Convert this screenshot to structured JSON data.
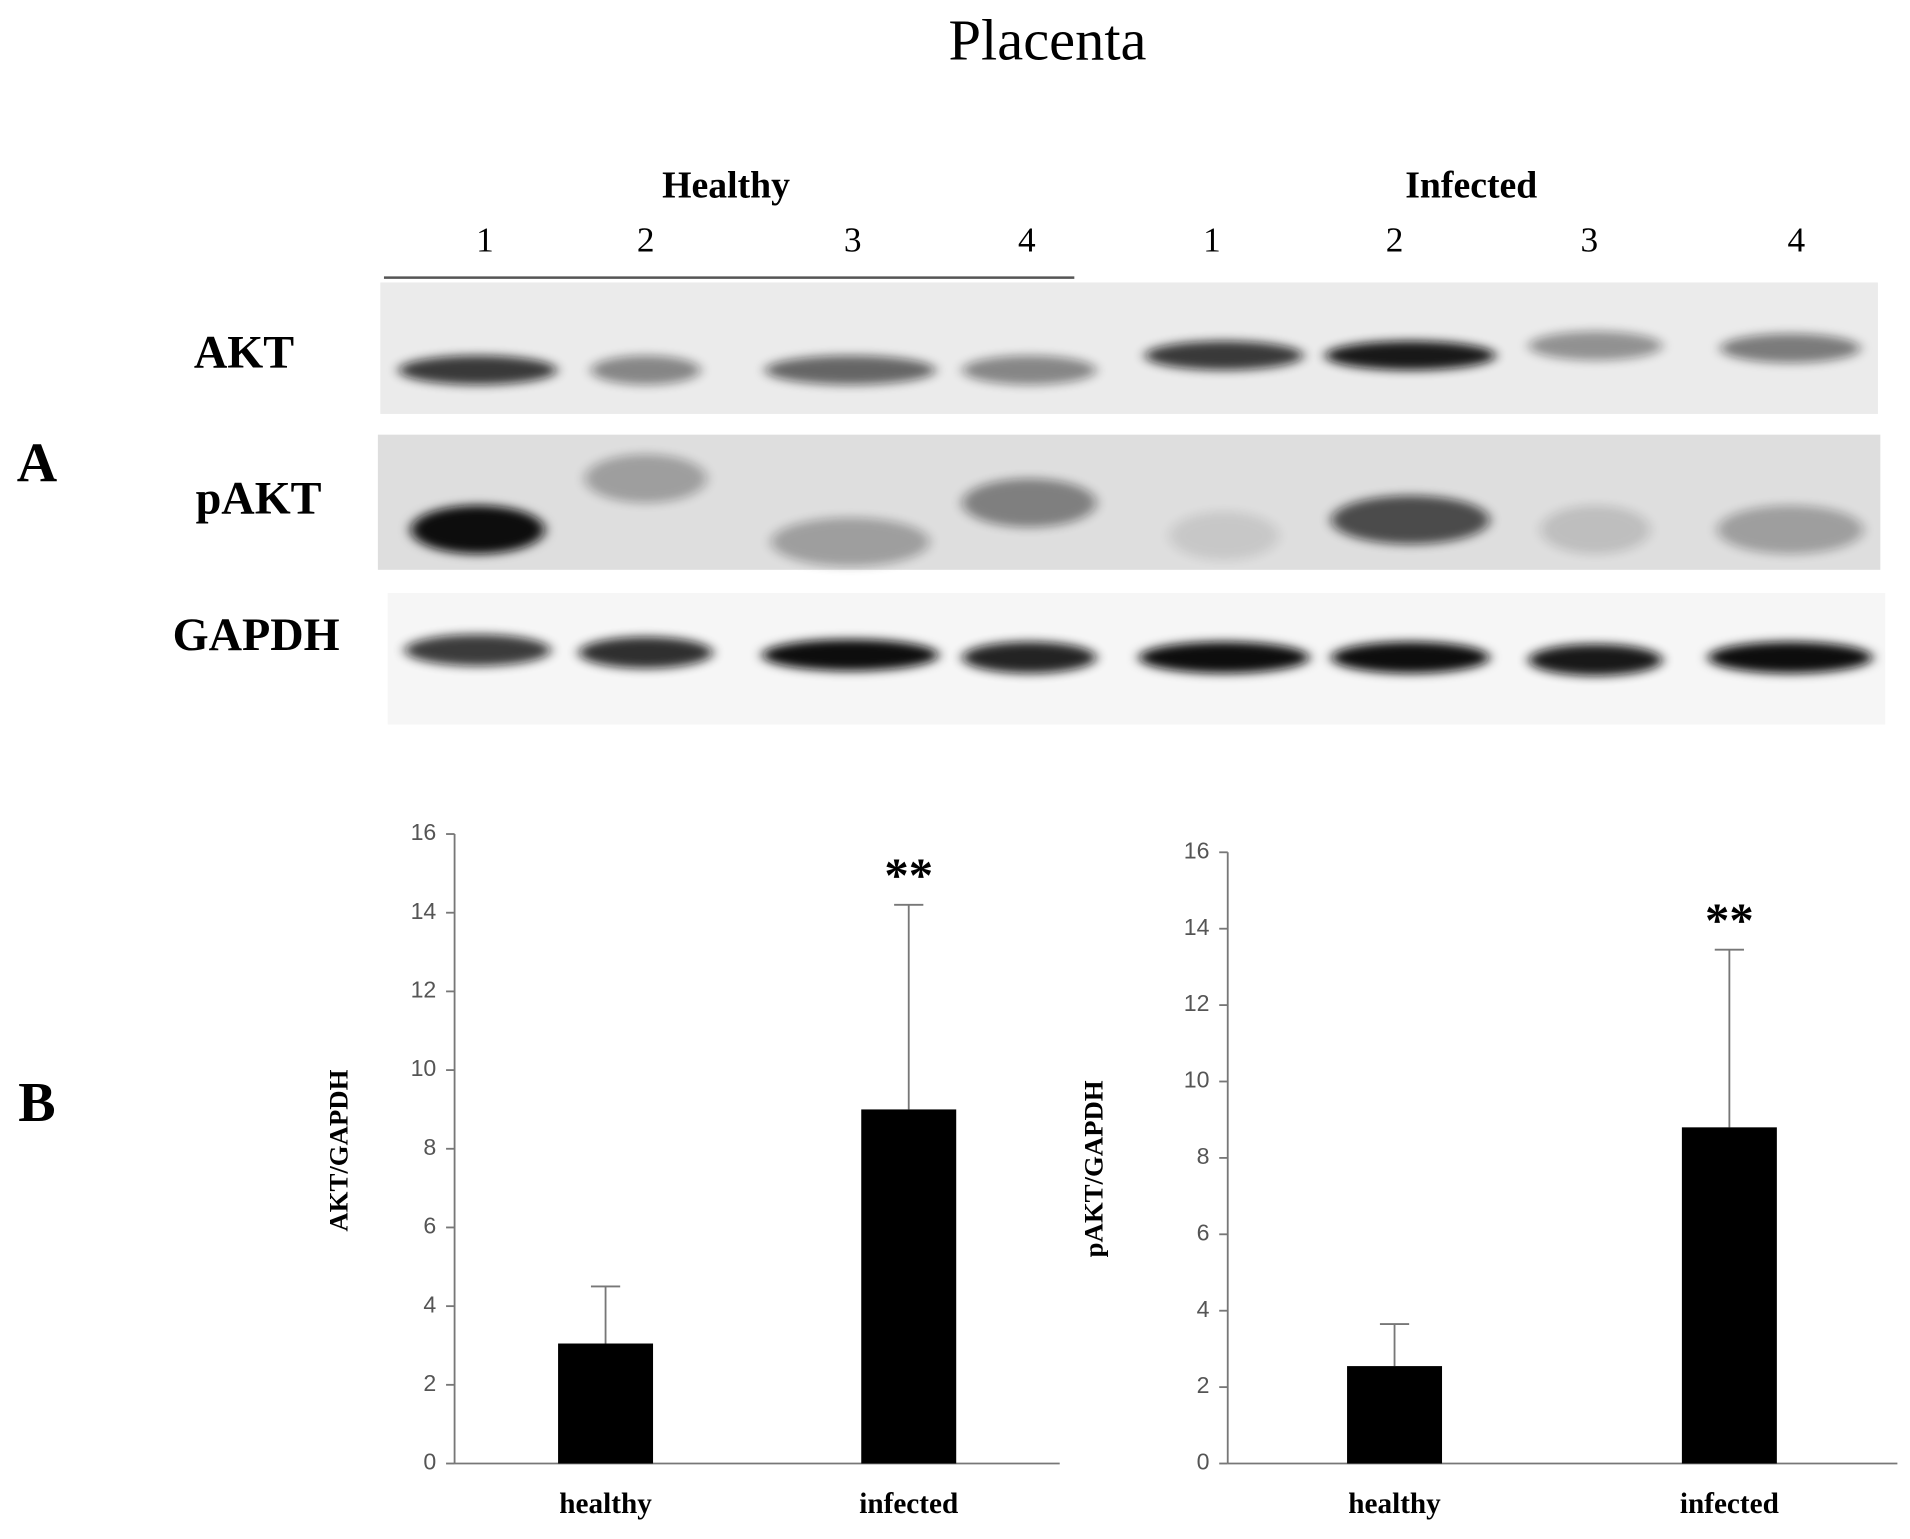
{
  "title": "Placenta",
  "panels": [
    "A",
    "B"
  ],
  "blot": {
    "groups": [
      {
        "name": "Healthy",
        "lanes": [
          "1",
          "2",
          "3",
          "4"
        ]
      },
      {
        "name": "Infected",
        "lanes": [
          "1",
          "2",
          "3",
          "4"
        ]
      }
    ],
    "rows": [
      "AKT",
      "pAKT",
      "GAPDH"
    ]
  },
  "chart_data": [
    {
      "type": "bar",
      "y_label": "AKT/GAPDH",
      "categories": [
        "healthy",
        "infected"
      ],
      "values": [
        3.05,
        9.0
      ],
      "errors": [
        1.45,
        5.2
      ],
      "significance": [
        null,
        "**"
      ],
      "color": "#000000",
      "ylim": [
        0,
        16
      ],
      "yticks": [
        0,
        2,
        4,
        6,
        8,
        10,
        12,
        14,
        16
      ]
    },
    {
      "type": "bar",
      "y_label": "pAKT/GAPDH",
      "categories": [
        "healthy",
        "infected"
      ],
      "values": [
        2.55,
        8.8
      ],
      "errors": [
        1.1,
        4.65
      ],
      "significance": [
        null,
        "**"
      ],
      "color": "#000000",
      "ylim": [
        0,
        16
      ],
      "yticks": [
        0,
        2,
        4,
        6,
        8,
        10,
        12,
        14,
        16
      ]
    }
  ]
}
